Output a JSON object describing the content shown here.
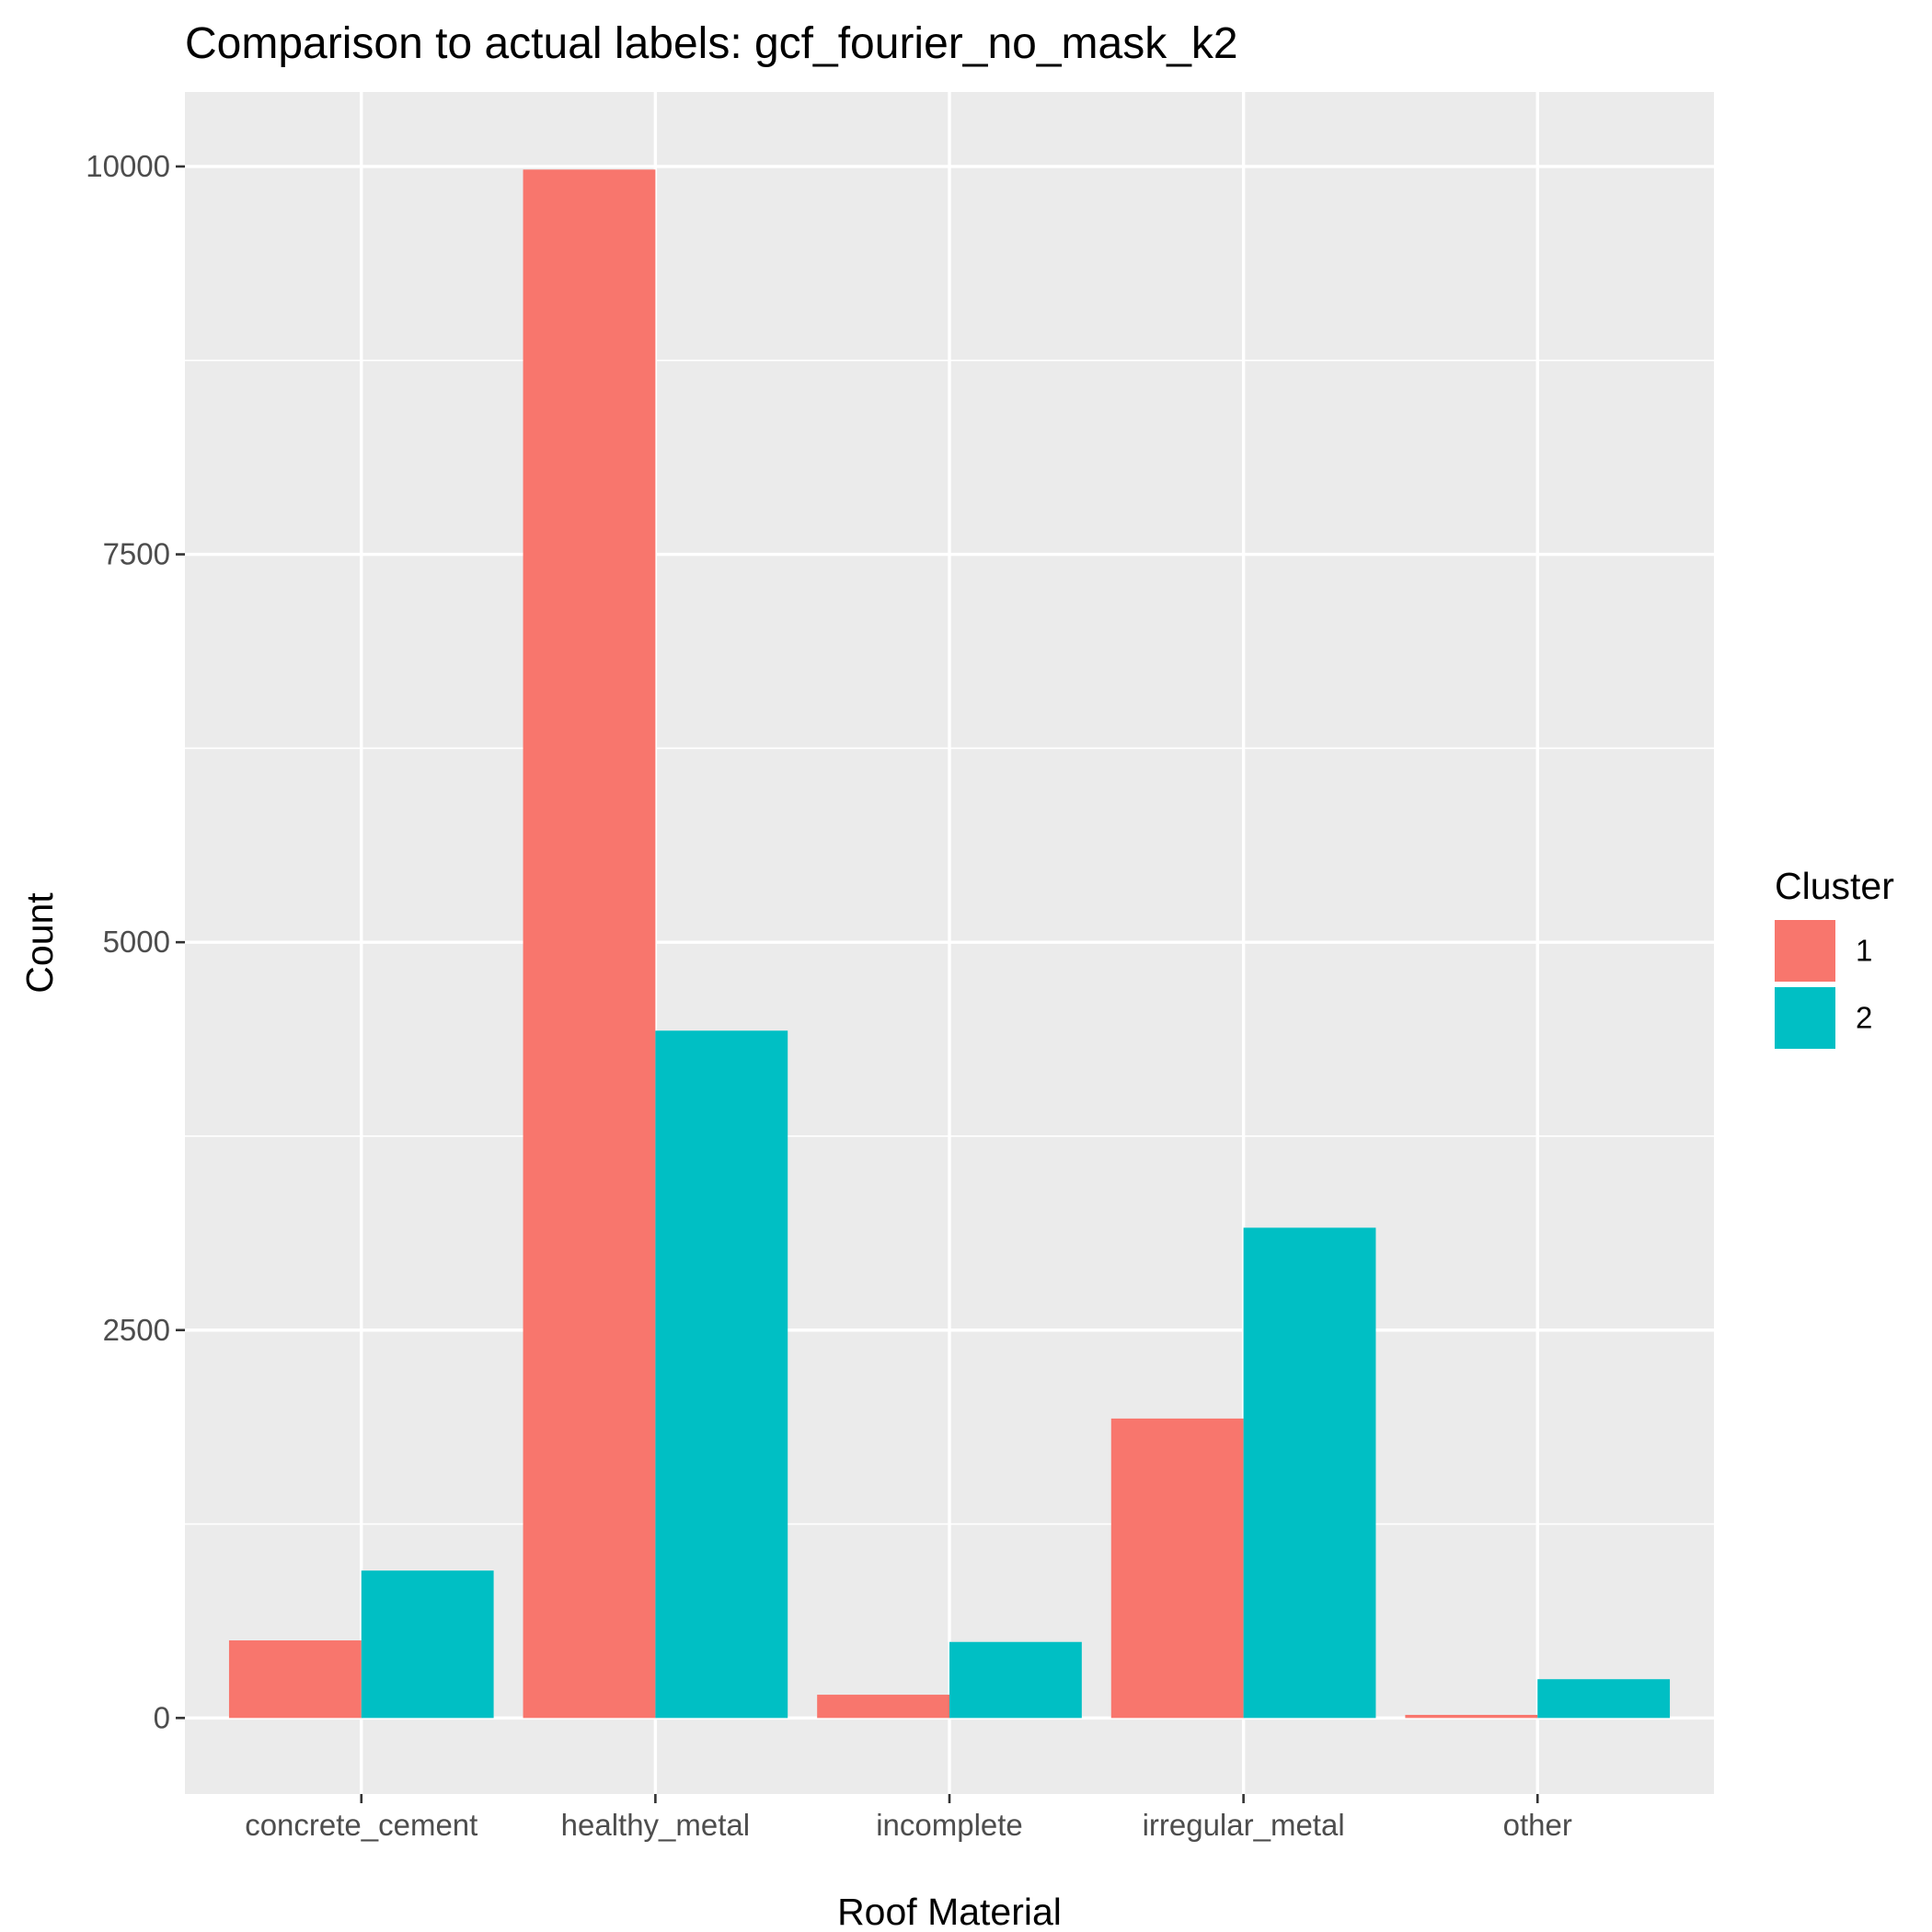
{
  "chart_data": {
    "type": "bar",
    "title": "Comparison to actual labels: gcf_fourier_no_mask_k2",
    "xlabel": "Roof Material",
    "ylabel": "Count",
    "categories": [
      "concrete_cement",
      "healthy_metal",
      "incomplete",
      "irregular_metal",
      "other"
    ],
    "series": [
      {
        "name": "1",
        "values": [
          500,
          9980,
          150,
          1930,
          20
        ],
        "color": "#F8766D"
      },
      {
        "name": "2",
        "values": [
          950,
          4430,
          490,
          3160,
          250
        ],
        "color": "#00BFC4"
      }
    ],
    "y_ticks": [
      0,
      2500,
      5000,
      7500,
      10000
    ],
    "y_tick_labels": [
      "0",
      "2500",
      "5000",
      "7500",
      "10000"
    ],
    "ylim": [
      -490,
      10480
    ],
    "legend": {
      "title": "Cluster",
      "position": "right"
    },
    "grid": true,
    "panel_background": "#EBEBEB",
    "grid_color": "#FFFFFF"
  }
}
